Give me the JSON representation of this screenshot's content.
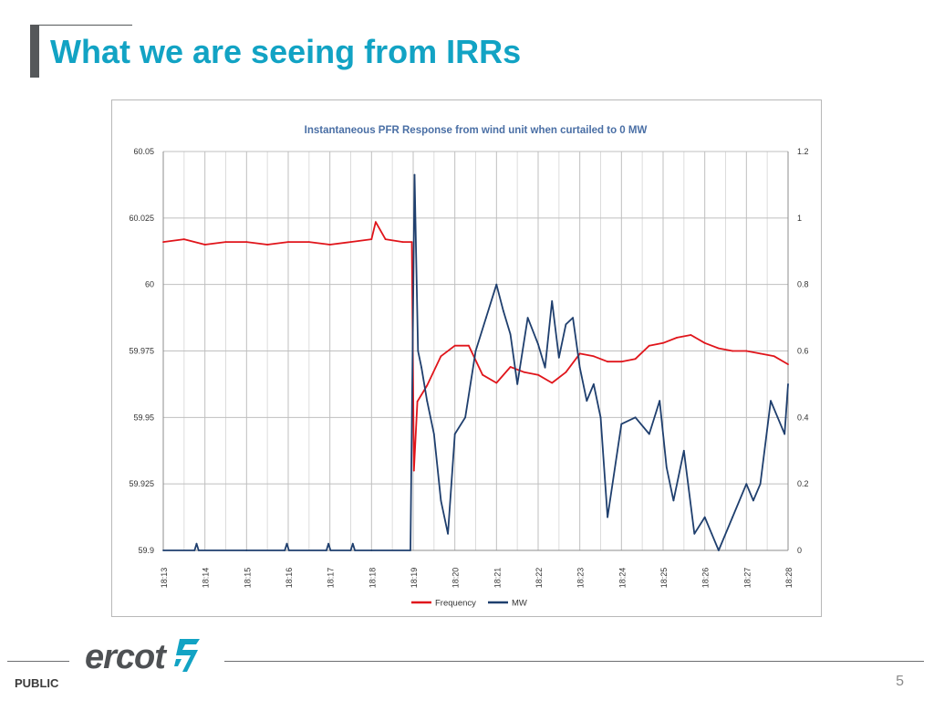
{
  "slide": {
    "title": "What we are seeing from IRRs",
    "footer_label": "PUBLIC",
    "page_number": "5",
    "logo_text": "ercot"
  },
  "colors": {
    "title": "#12a3c4",
    "frequency": "#e0151b",
    "mw": "#1f3f6e",
    "logo": "#4e5154",
    "logo_accent": "#12a3c4"
  },
  "chart_data": {
    "type": "line",
    "title": "Instantaneous PFR Response from wind unit when curtailed to 0 MW",
    "x_tick_labels": [
      "18:13",
      "18:14",
      "18:15",
      "18:16",
      "18:17",
      "18:18",
      "18:19",
      "18:20",
      "18:21",
      "18:22",
      "18:23",
      "18:24",
      "18:25",
      "18:26",
      "18:27",
      "18:28"
    ],
    "xlim": [
      "18:13",
      "18:28"
    ],
    "y_left": {
      "ticks": [
        "59.9",
        "59.925",
        "59.95",
        "59.975",
        "60",
        "60.025",
        "60.05"
      ],
      "lim": [
        59.9,
        60.05
      ]
    },
    "y_right": {
      "ticks": [
        "0",
        "0.2",
        "0.4",
        "0.6",
        "0.8",
        "1",
        "1.2"
      ],
      "lim": [
        0,
        1.2
      ]
    },
    "grid": true,
    "legend_position": "bottom",
    "series": [
      {
        "name": "Frequency",
        "axis": "left",
        "color": "#e0151b",
        "x": [
          "18:13",
          "18:13:30",
          "18:14",
          "18:14:30",
          "18:15",
          "18:15:30",
          "18:16",
          "18:16:30",
          "18:17",
          "18:17:30",
          "18:18",
          "18:18:06",
          "18:18:20",
          "18:18:45",
          "18:18:58",
          "18:19:01",
          "18:19:06",
          "18:19:20",
          "18:19:40",
          "18:20",
          "18:20:20",
          "18:20:40",
          "18:21",
          "18:21:20",
          "18:21:40",
          "18:22",
          "18:22:20",
          "18:22:40",
          "18:23",
          "18:23:20",
          "18:23:40",
          "18:24",
          "18:24:20",
          "18:24:40",
          "18:25",
          "18:25:20",
          "18:25:40",
          "18:26",
          "18:26:20",
          "18:26:40",
          "18:27",
          "18:27:20",
          "18:27:40",
          "18:28"
        ],
        "y": [
          60.016,
          60.017,
          60.015,
          60.016,
          60.016,
          60.015,
          60.016,
          60.016,
          60.015,
          60.016,
          60.017,
          60.0235,
          60.017,
          60.016,
          60.016,
          59.93,
          59.956,
          59.962,
          59.973,
          59.977,
          59.977,
          59.966,
          59.963,
          59.969,
          59.967,
          59.966,
          59.963,
          59.967,
          59.974,
          59.973,
          59.971,
          59.971,
          59.972,
          59.977,
          59.978,
          59.98,
          59.981,
          59.978,
          59.976,
          59.975,
          59.975,
          59.974,
          59.973,
          59.97
        ]
      },
      {
        "name": "MW",
        "axis": "right",
        "color": "#1f3f6e",
        "x": [
          "18:13",
          "18:13:45",
          "18:13:48",
          "18:13:51",
          "18:15",
          "18:15:55",
          "18:15:58",
          "18:16:01",
          "18:16:55",
          "18:16:58",
          "18:17:01",
          "18:17:30",
          "18:17:33",
          "18:17:36",
          "18:18",
          "18:18:56",
          "18:19:02",
          "18:19:07",
          "18:19:12",
          "18:19:20",
          "18:19:30",
          "18:19:40",
          "18:19:50",
          "18:20",
          "18:20:15",
          "18:20:30",
          "18:20:45",
          "18:21",
          "18:21:10",
          "18:21:20",
          "18:21:30",
          "18:21:45",
          "18:22",
          "18:22:10",
          "18:22:20",
          "18:22:30",
          "18:22:40",
          "18:22:50",
          "18:23",
          "18:23:10",
          "18:23:20",
          "18:23:30",
          "18:23:40",
          "18:24",
          "18:24:20",
          "18:24:40",
          "18:24:55",
          "18:25:05",
          "18:25:15",
          "18:25:30",
          "18:25:45",
          "18:26",
          "18:26:10",
          "18:26:20",
          "18:26:40",
          "18:27",
          "18:27:10",
          "18:27:20",
          "18:27:35",
          "18:27:45",
          "18:27:55",
          "18:28"
        ],
        "y": [
          0,
          0,
          0.02,
          0,
          0,
          0,
          0.02,
          0,
          0,
          0.02,
          0,
          0,
          0.02,
          0,
          0,
          0,
          1.13,
          0.6,
          0.55,
          0.45,
          0.35,
          0.15,
          0.05,
          0.35,
          0.4,
          0.6,
          0.7,
          0.8,
          0.72,
          0.65,
          0.5,
          0.7,
          0.62,
          0.55,
          0.75,
          0.58,
          0.68,
          0.7,
          0.55,
          0.45,
          0.5,
          0.4,
          0.1,
          0.38,
          0.4,
          0.35,
          0.45,
          0.25,
          0.15,
          0.3,
          0.05,
          0.1,
          0.05,
          0.0,
          0.1,
          0.2,
          0.15,
          0.2,
          0.45,
          0.4,
          0.35,
          0.5
        ]
      }
    ]
  }
}
